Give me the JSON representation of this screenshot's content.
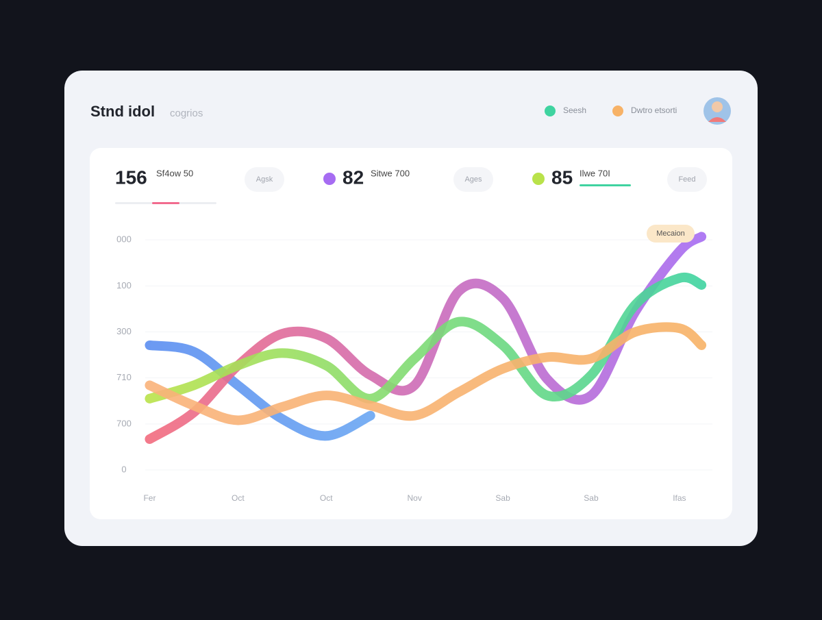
{
  "header": {
    "title": "Stnd idol",
    "subtitle": "cogrios"
  },
  "stats": [
    {
      "value": "156",
      "label": "Sf4ow 50",
      "tag": "Agsk"
    },
    {
      "value": "82",
      "label": "Sitwe 700",
      "tag": "Ages"
    },
    {
      "value": "85",
      "label": "Ilwe 70I",
      "tag": "Feed"
    }
  ],
  "chart_data": {
    "type": "line",
    "annotation": "Mecaion",
    "x": [
      0,
      0.5,
      1,
      1.5,
      2,
      2.5,
      3,
      3.5,
      4,
      4.5,
      5,
      5.5,
      6,
      6.25
    ],
    "xlim": [
      -0.05,
      6.35
    ],
    "xticks": [
      {
        "value": 0,
        "label": "Fer"
      },
      {
        "value": 1,
        "label": "Oct"
      },
      {
        "value": 2,
        "label": "Oct"
      },
      {
        "value": 3,
        "label": "Nov"
      },
      {
        "value": 4,
        "label": "Sab"
      },
      {
        "value": 5,
        "label": "Sab"
      },
      {
        "value": 6,
        "label": "Ifas"
      }
    ],
    "ylim": [
      0,
      5.3
    ],
    "yticks": [
      0,
      {
        "value": 1,
        "label": "700"
      },
      {
        "value": 2,
        "label": "710"
      },
      {
        "value": 3,
        "label": "300"
      },
      {
        "value": 4,
        "label": "100"
      },
      {
        "value": 5,
        "label": "000"
      }
    ],
    "grid": true,
    "series": [
      {
        "colors": [
          "#5b8ef0",
          "#6aa6f2"
        ],
        "values": [
          2.71,
          2.57,
          1.84,
          1.11,
          0.74,
          1.18,
          null,
          null,
          null,
          null,
          null,
          null,
          null,
          null
        ]
      },
      {
        "colors": [
          "#f26b7e",
          "#a66cf2"
        ],
        "values": [
          0.67,
          1.25,
          2.27,
          2.96,
          2.86,
          2.06,
          1.84,
          3.88,
          3.73,
          1.98,
          1.62,
          3.44,
          4.75,
          5.07
        ]
      },
      {
        "name": "Seesh",
        "colors": [
          "#b9e24a",
          "#3fd3a0"
        ],
        "values": [
          1.55,
          1.84,
          2.27,
          2.54,
          2.27,
          1.55,
          2.42,
          3.22,
          2.71,
          1.62,
          2.06,
          3.59,
          4.17,
          4.02
        ]
      },
      {
        "name": "Dwtro etsorti",
        "colors": [
          "#f9b27a",
          "#f7b267"
        ],
        "values": [
          1.84,
          1.4,
          1.08,
          1.37,
          1.62,
          1.4,
          1.18,
          1.69,
          2.2,
          2.45,
          2.42,
          3.0,
          3.08,
          2.71
        ]
      }
    ]
  }
}
